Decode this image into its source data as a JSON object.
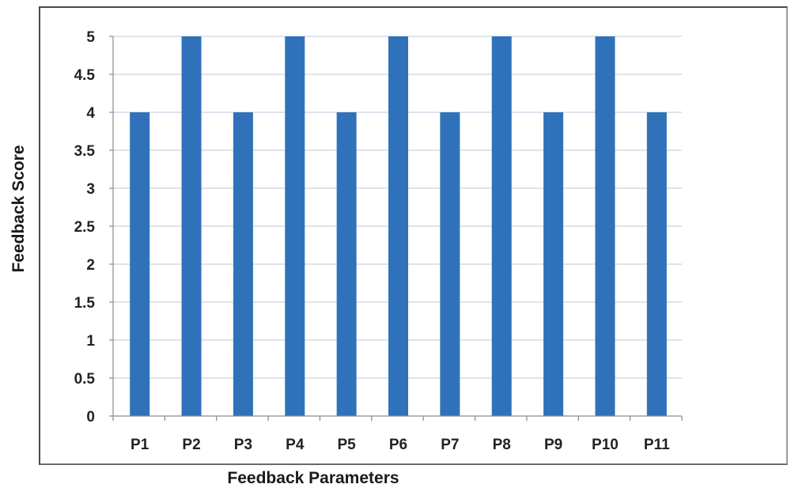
{
  "chart_data": {
    "type": "bar",
    "title": "",
    "xlabel": "Feedback Parameters",
    "ylabel": "Feedback Score",
    "categories": [
      "P1",
      "P2",
      "P3",
      "P4",
      "P5",
      "P6",
      "P7",
      "P8",
      "P9",
      "P10",
      "P11"
    ],
    "values": [
      4,
      5,
      4,
      5,
      4,
      5,
      4,
      5,
      4,
      5,
      4
    ],
    "ylim": [
      0,
      5
    ],
    "yticks": [
      "0",
      "0.5",
      "1",
      "1.5",
      "2",
      "2.5",
      "3",
      "3.5",
      "4",
      "4.5",
      "5"
    ],
    "ytick_values": [
      0,
      0.5,
      1,
      1.5,
      2,
      2.5,
      3,
      3.5,
      4,
      4.5,
      5
    ],
    "grid": true,
    "legend": "none",
    "bar_color": "#2f72b9"
  }
}
